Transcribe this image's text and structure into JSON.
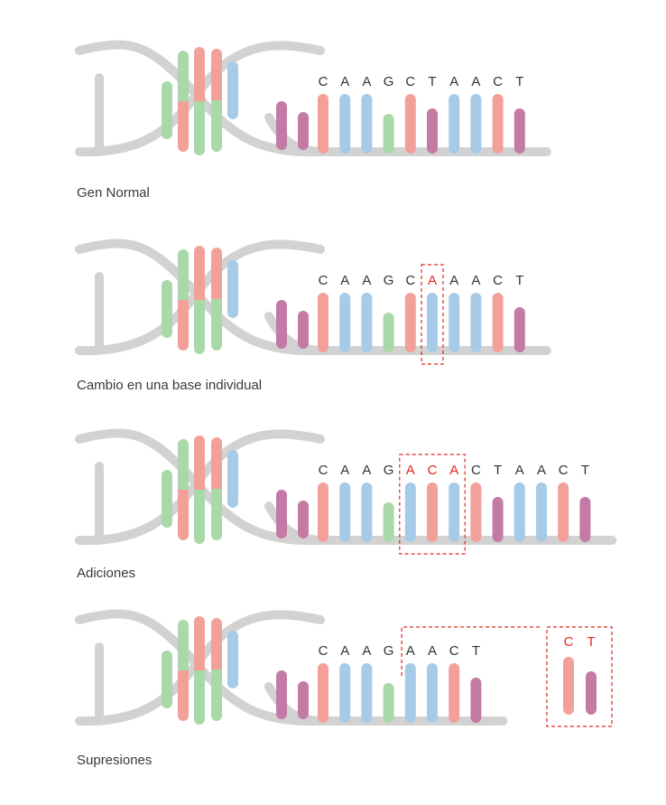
{
  "colors": {
    "backbone": "#d2d2d2",
    "C": "#f3a09b",
    "A": "#a6cbe8",
    "G": "#a9d9a8",
    "T": "#c37ba6",
    "letter": "#333333",
    "mutation": "#e0281f"
  },
  "panels": [
    {
      "caption": "Gen Normal",
      "sequence": [
        "C",
        "A",
        "A",
        "G",
        "C",
        "T",
        "A",
        "A",
        "C",
        "T"
      ],
      "highlight": [],
      "detached": []
    },
    {
      "caption": "Cambio en una base individual",
      "sequence": [
        "C",
        "A",
        "A",
        "G",
        "C",
        "A",
        "A",
        "A",
        "C",
        "T"
      ],
      "highlight": [
        5
      ],
      "detached": []
    },
    {
      "caption": "Adiciones",
      "sequence": [
        "C",
        "A",
        "A",
        "G",
        "A",
        "C",
        "A",
        "C",
        "T",
        "A",
        "A",
        "C",
        "T"
      ],
      "highlight": [
        4,
        5,
        6
      ],
      "detached": []
    },
    {
      "caption": "Supresiones",
      "sequence": [
        "C",
        "A",
        "A",
        "G",
        "A",
        "A",
        "C",
        "T"
      ],
      "highlight": [],
      "detached": [
        "C",
        "T"
      ]
    }
  ]
}
